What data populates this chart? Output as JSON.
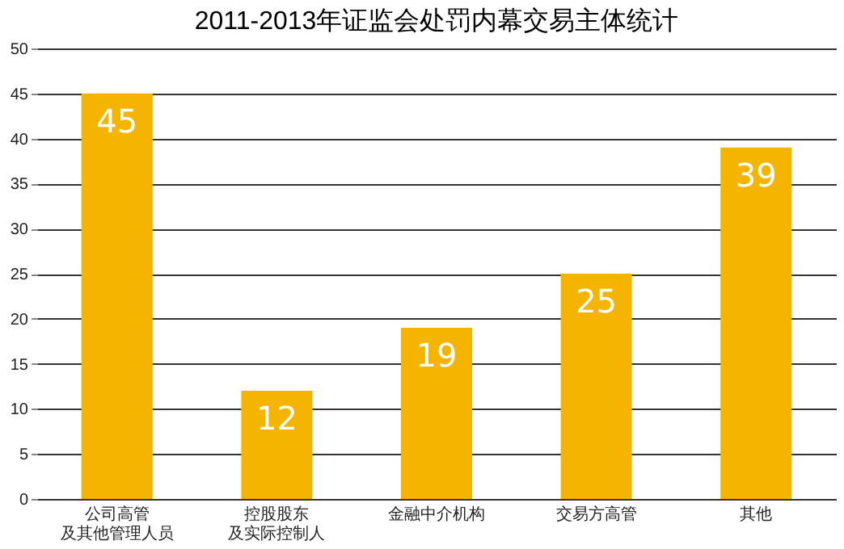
{
  "chart_data": {
    "type": "bar",
    "title": "2011-2013年证监会处罚内幕交易主体统计",
    "categories": [
      "公司高管及其他管理人员",
      "控股股东及实际控制人",
      "金融中介机构",
      "交易方高管",
      "其他"
    ],
    "values": [
      45,
      12,
      19,
      25,
      39
    ],
    "color": "#f5b400",
    "ylim": [
      0,
      50
    ],
    "yticks": [
      0,
      5,
      10,
      15,
      20,
      25,
      30,
      35,
      40,
      45,
      50
    ],
    "grid": "y",
    "data_labels": true
  }
}
